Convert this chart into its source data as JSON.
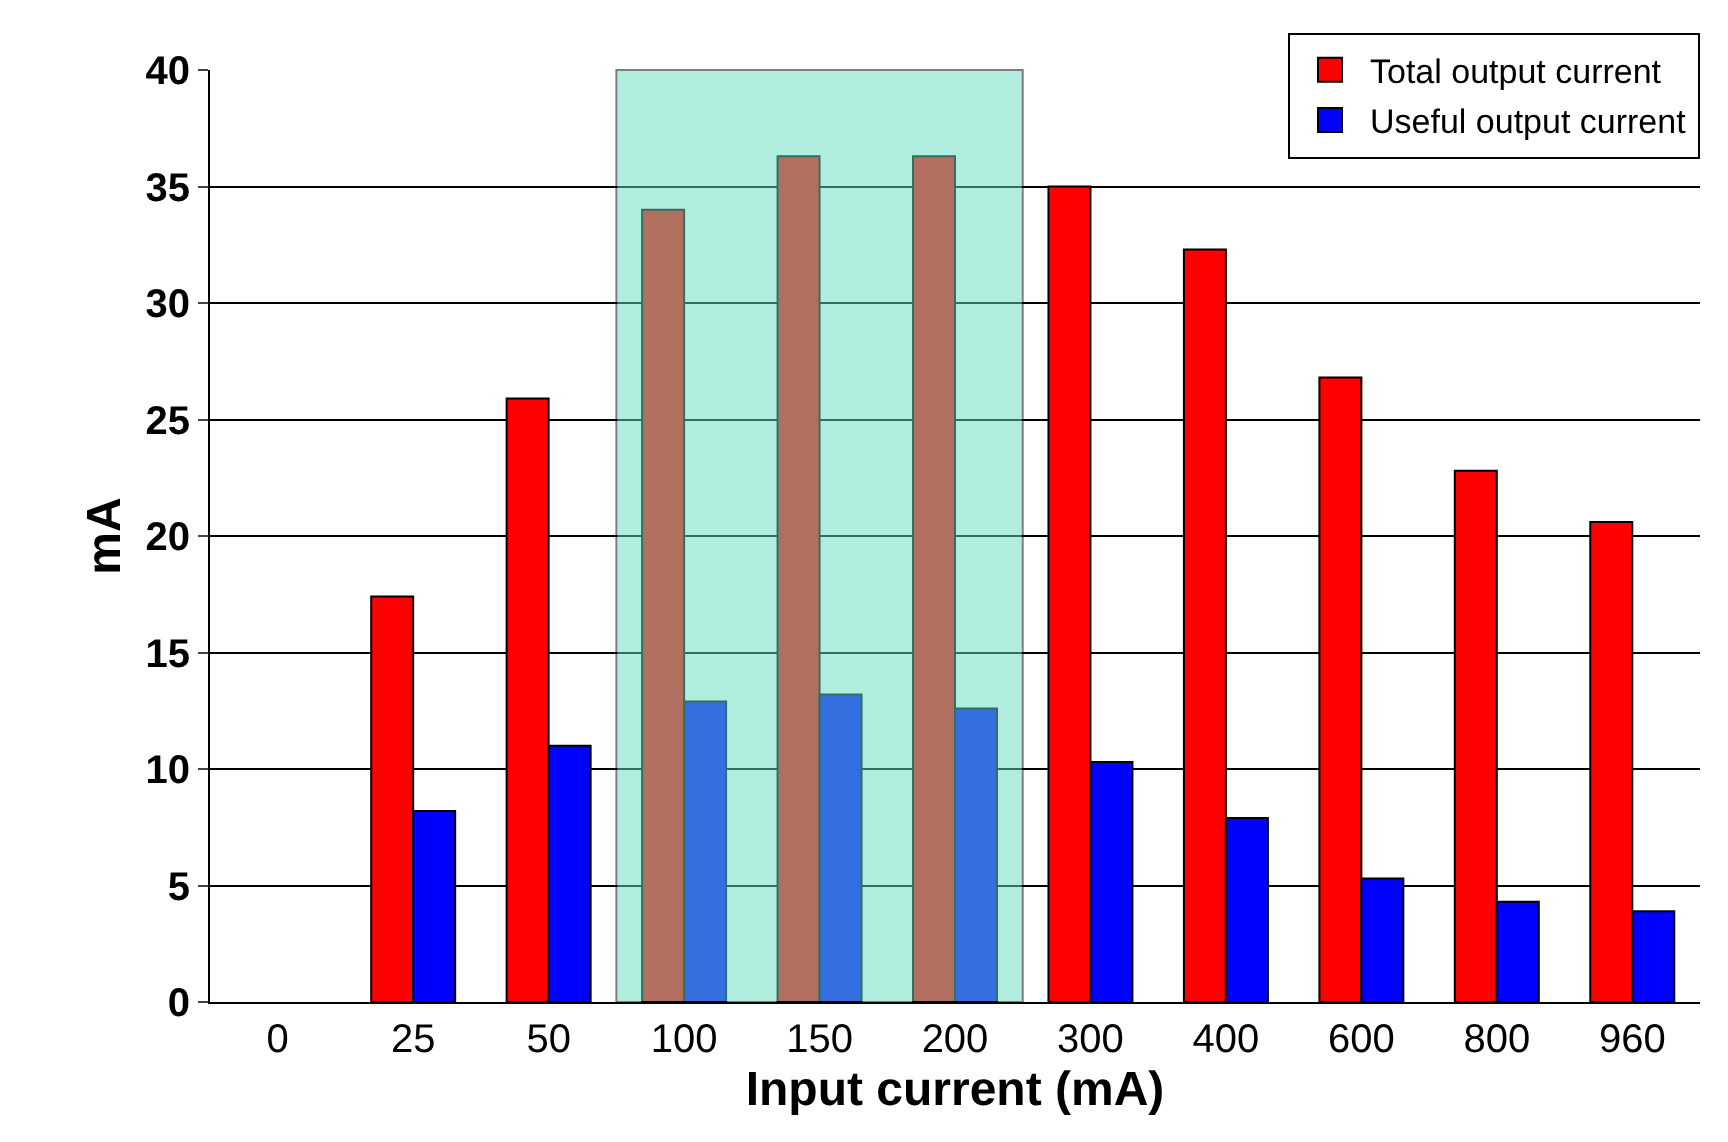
{
  "chart_data": {
    "type": "bar",
    "xlabel": "Input current (mA)",
    "ylabel": "mA",
    "categories": [
      "0",
      "25",
      "50",
      "100",
      "150",
      "200",
      "300",
      "400",
      "600",
      "800",
      "960"
    ],
    "series": [
      {
        "name": "Total output current",
        "color": "#ff0000",
        "values": [
          null,
          17.4,
          25.9,
          34,
          36.3,
          36.3,
          35,
          32.3,
          26.8,
          22.8,
          20.6
        ]
      },
      {
        "name": "Useful output current",
        "color": "#0000ff",
        "values": [
          null,
          8.2,
          11,
          12.9,
          13.2,
          12.6,
          10.3,
          7.9,
          5.3,
          4.3,
          3.9
        ]
      }
    ],
    "ylim": [
      0,
      40
    ],
    "yticks": [
      0,
      5,
      10,
      15,
      20,
      25,
      30,
      35,
      40
    ],
    "grid": "y",
    "legend": "top right",
    "bands": [
      {
        "axis": "x",
        "from": "100",
        "to": "200",
        "color": "#66ddc0"
      }
    ]
  }
}
